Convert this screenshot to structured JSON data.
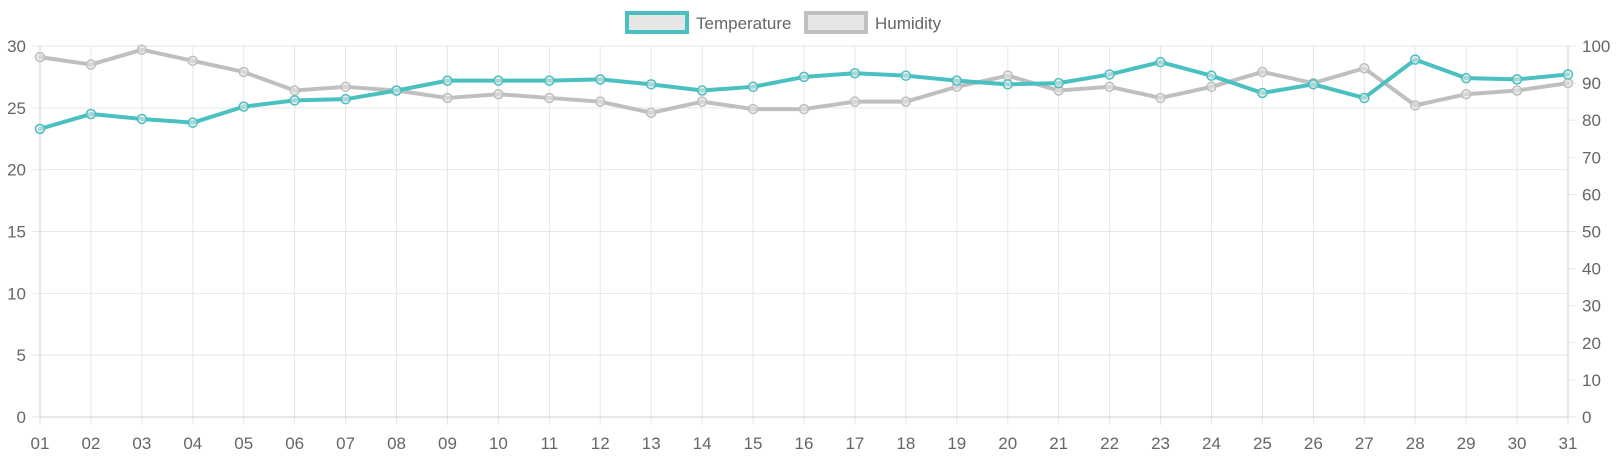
{
  "chart_data": {
    "type": "line",
    "x": [
      "01",
      "02",
      "03",
      "04",
      "05",
      "06",
      "07",
      "08",
      "09",
      "10",
      "11",
      "12",
      "13",
      "14",
      "15",
      "16",
      "17",
      "18",
      "19",
      "20",
      "21",
      "22",
      "23",
      "24",
      "25",
      "26",
      "27",
      "28",
      "29",
      "30",
      "31"
    ],
    "series": [
      {
        "name": "Temperature",
        "axis": "left",
        "color": "#4bc0c0",
        "values": [
          23.3,
          24.5,
          24.1,
          23.8,
          25.1,
          25.6,
          25.7,
          26.4,
          27.2,
          27.2,
          27.2,
          27.3,
          26.9,
          26.4,
          26.7,
          27.5,
          27.8,
          27.6,
          27.2,
          26.9,
          27.0,
          27.7,
          28.7,
          27.6,
          26.2,
          26.9,
          25.8,
          28.9,
          27.4,
          27.3,
          27.7
        ]
      },
      {
        "name": "Humidity",
        "axis": "right",
        "color": "#bfbfbf",
        "values": [
          97,
          95,
          99,
          96,
          93,
          88,
          89,
          88,
          86,
          87,
          86,
          85,
          82,
          85,
          83,
          83,
          85,
          85,
          89,
          92,
          88,
          89,
          86,
          89,
          93,
          90,
          94,
          84,
          87,
          88,
          90
        ]
      }
    ],
    "y_left": {
      "min": 0,
      "max": 30,
      "ticks": [
        "0",
        "5",
        "10",
        "15",
        "20",
        "25",
        "30"
      ]
    },
    "y_right": {
      "min": 0,
      "max": 100,
      "ticks": [
        "0",
        "10",
        "20",
        "30",
        "40",
        "50",
        "60",
        "70",
        "80",
        "90",
        "100"
      ]
    },
    "grid": true,
    "legend_position": "top-center"
  }
}
